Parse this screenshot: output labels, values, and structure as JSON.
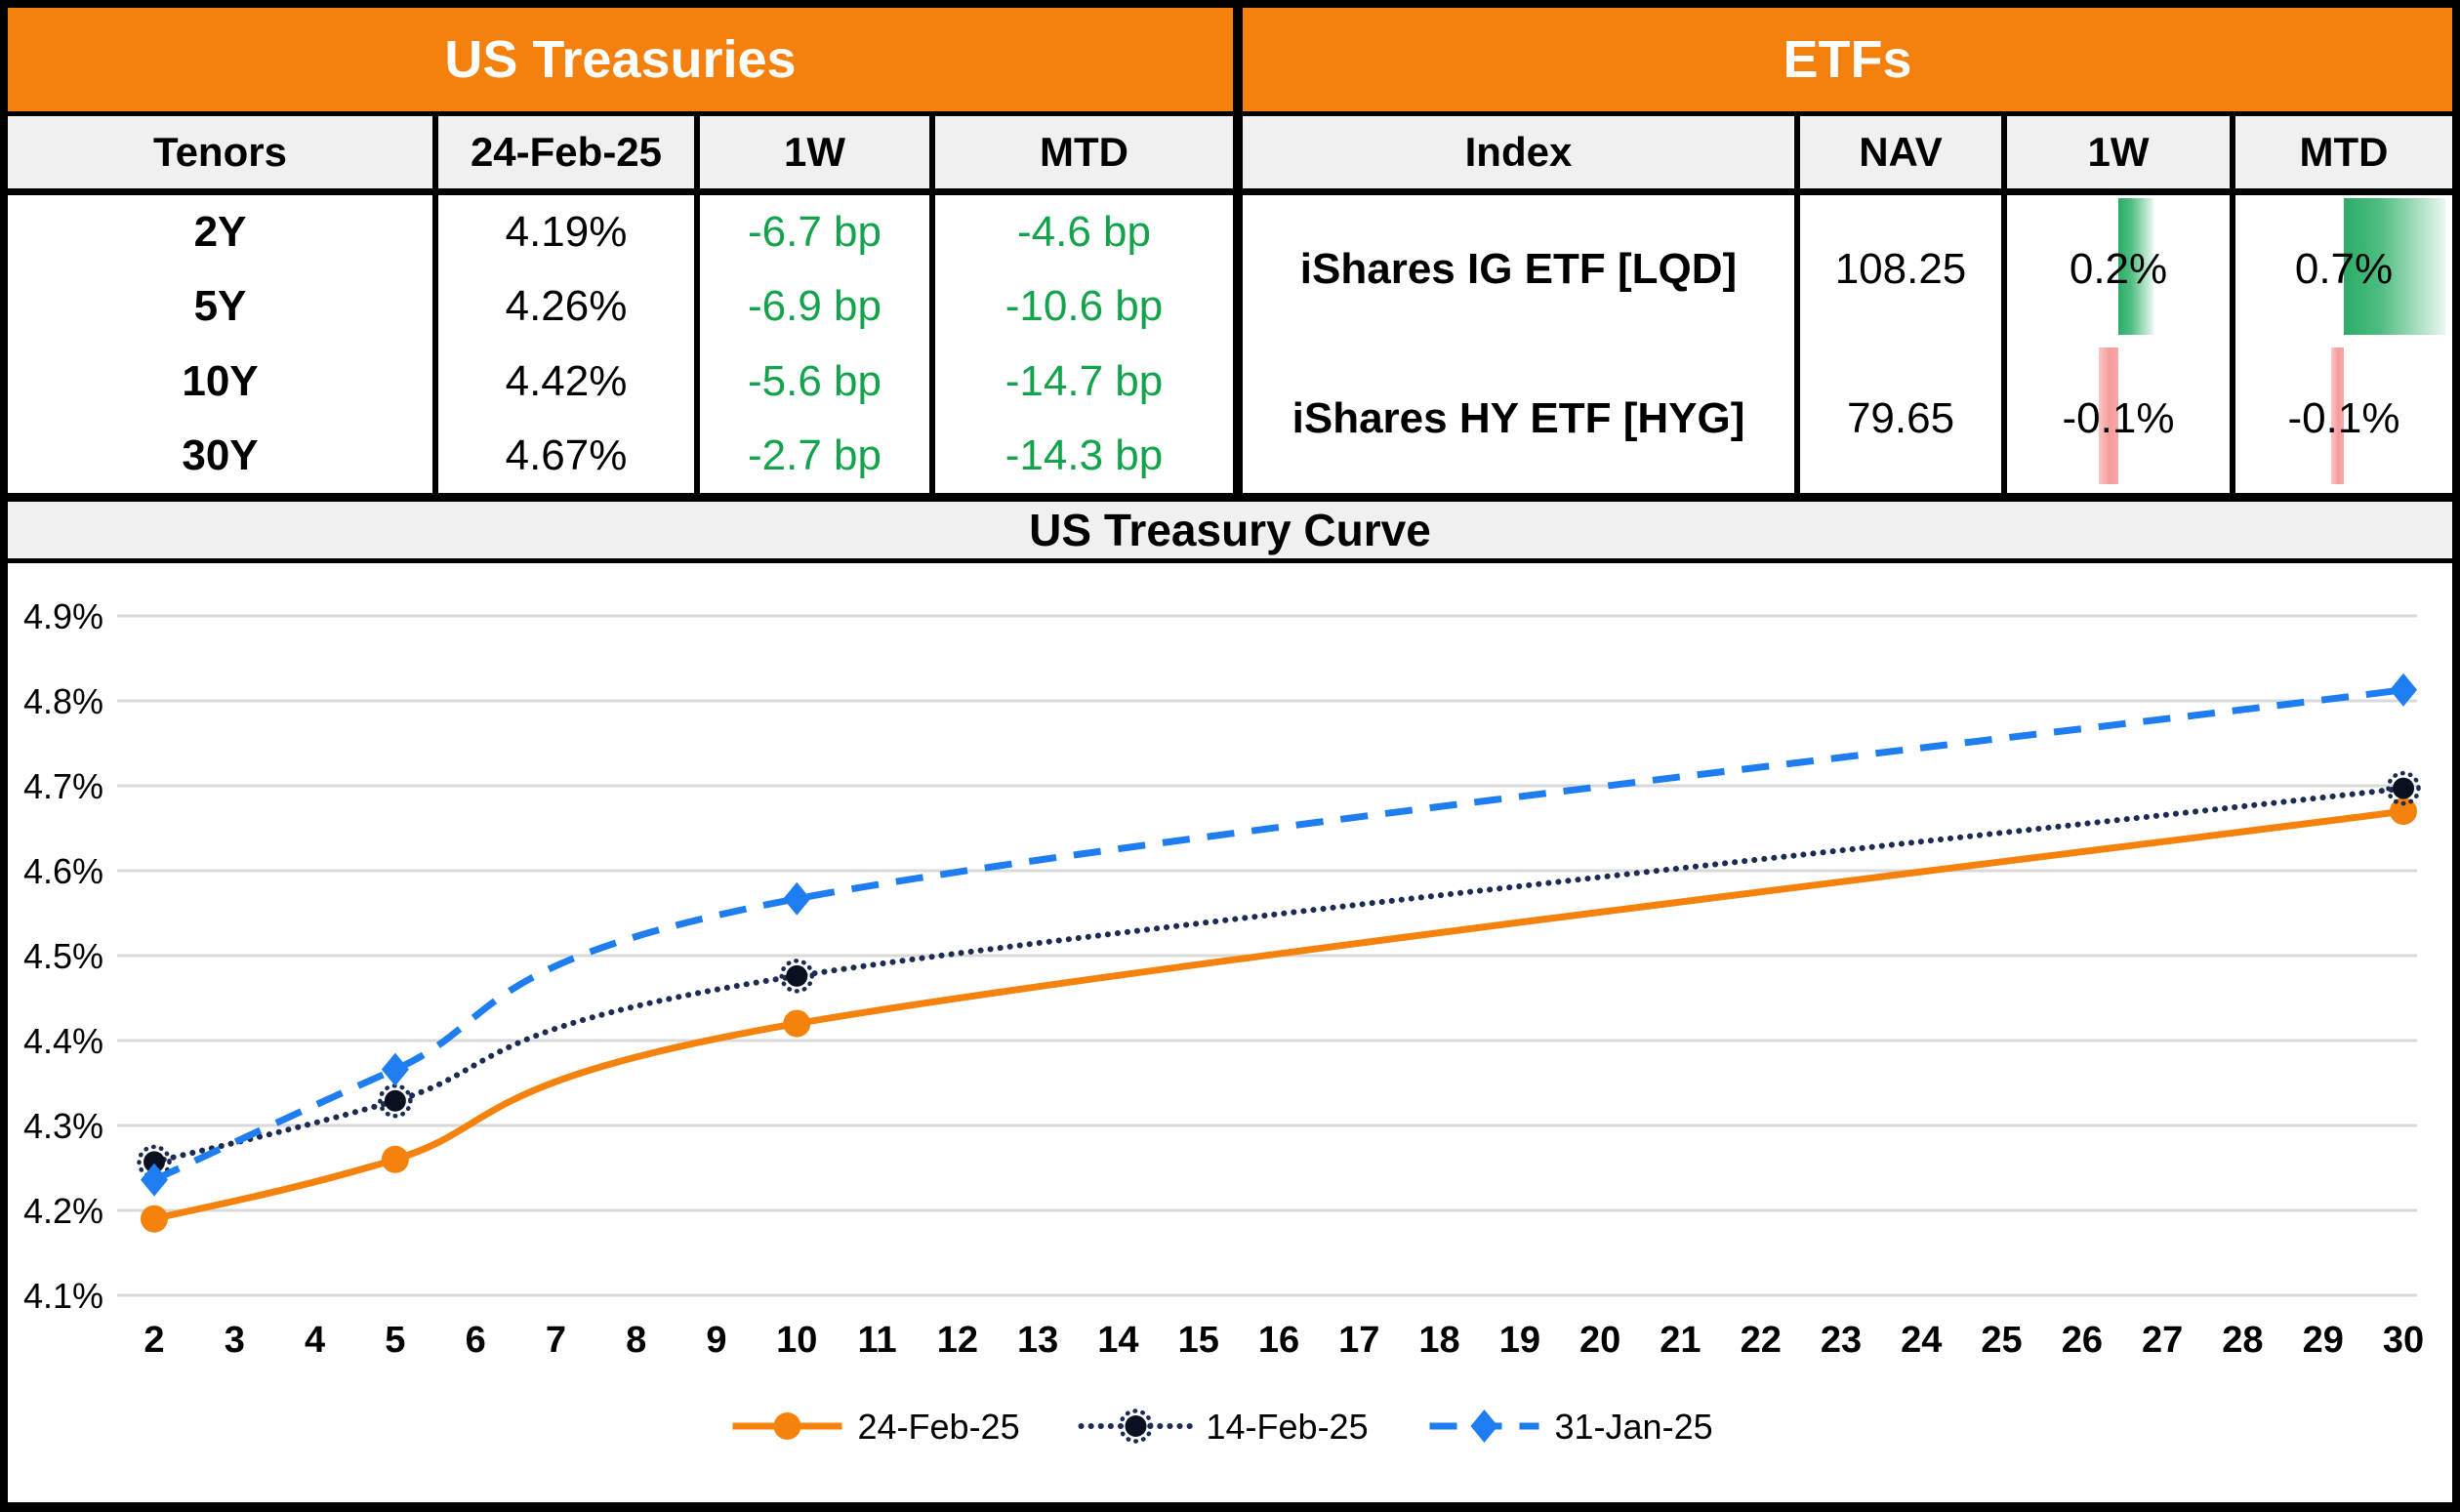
{
  "treasuries": {
    "title": "US Treasuries",
    "headers": [
      "Tenors",
      "24-Feb-25",
      "1W",
      "MTD"
    ],
    "rows": [
      {
        "tenor": "2Y",
        "rate": "4.19%",
        "w1": "-6.7 bp",
        "mtd": "-4.6 bp"
      },
      {
        "tenor": "5Y",
        "rate": "4.26%",
        "w1": "-6.9 bp",
        "mtd": "-10.6 bp"
      },
      {
        "tenor": "10Y",
        "rate": "4.42%",
        "w1": "-5.6 bp",
        "mtd": "-14.7 bp"
      },
      {
        "tenor": "30Y",
        "rate": "4.67%",
        "w1": "-2.7 bp",
        "mtd": "-14.3 bp"
      }
    ]
  },
  "etfs": {
    "title": "ETFs",
    "headers": [
      "Index",
      "NAV",
      "1W",
      "MTD"
    ],
    "rows": [
      {
        "index": "iShares IG ETF [LQD]",
        "nav": "108.25",
        "w1": "0.2%",
        "mtd": "0.7%",
        "bars": {
          "w1": {
            "side": "pos",
            "pct": 15.6
          },
          "mtd": {
            "side": "pos",
            "pct": 47
          }
        }
      },
      {
        "index": "iShares HY ETF [HYG]",
        "nav": "79.65",
        "w1": "-0.1%",
        "mtd": "-0.1%",
        "bars": {
          "w1": {
            "side": "neg",
            "pct": 8.7
          },
          "mtd": {
            "side": "neg",
            "pct": 5.7
          }
        }
      }
    ]
  },
  "chart": {
    "title": "US Treasury Curve"
  },
  "chart_data": {
    "type": "line",
    "title": "US Treasury Curve",
    "x": [
      2,
      5,
      10,
      30
    ],
    "series": [
      {
        "name": "24-Feb-25",
        "values": [
          4.19,
          4.26,
          4.42,
          4.67
        ],
        "color": "#F5820D",
        "style": "solid",
        "marker": "circle"
      },
      {
        "name": "14-Feb-25",
        "values": [
          4.257,
          4.329,
          4.476,
          4.697
        ],
        "color": "#1B2B52",
        "style": "dotted",
        "marker": "dotcircle"
      },
      {
        "name": "31-Jan-25",
        "values": [
          4.236,
          4.366,
          4.567,
          4.813
        ],
        "color": "#1E7DF0",
        "style": "dashed",
        "marker": "diamond"
      }
    ],
    "xlabel": "",
    "ylabel": "",
    "ylim": [
      4.1,
      4.9
    ],
    "ytick_step": 0.1,
    "ytick_format": "percent_1dp",
    "xticks": [
      2,
      3,
      4,
      5,
      6,
      7,
      8,
      9,
      10,
      11,
      12,
      13,
      14,
      15,
      16,
      17,
      18,
      19,
      20,
      21,
      22,
      23,
      24,
      25,
      26,
      27,
      28,
      29,
      30
    ],
    "grid": "horizontal",
    "legend_position": "bottom"
  },
  "colors": {
    "accent_orange": "#F5800D",
    "green_text": "#13A34A",
    "navy_line": "#1B2B52",
    "blue_line": "#1E7DF0",
    "orange_line": "#F5820D",
    "gridline": "#D9D9D9",
    "header_gray": "#F0F0F0",
    "pos_bar_green": "#2BAD66",
    "neg_bar_red": "#F59C9C"
  }
}
